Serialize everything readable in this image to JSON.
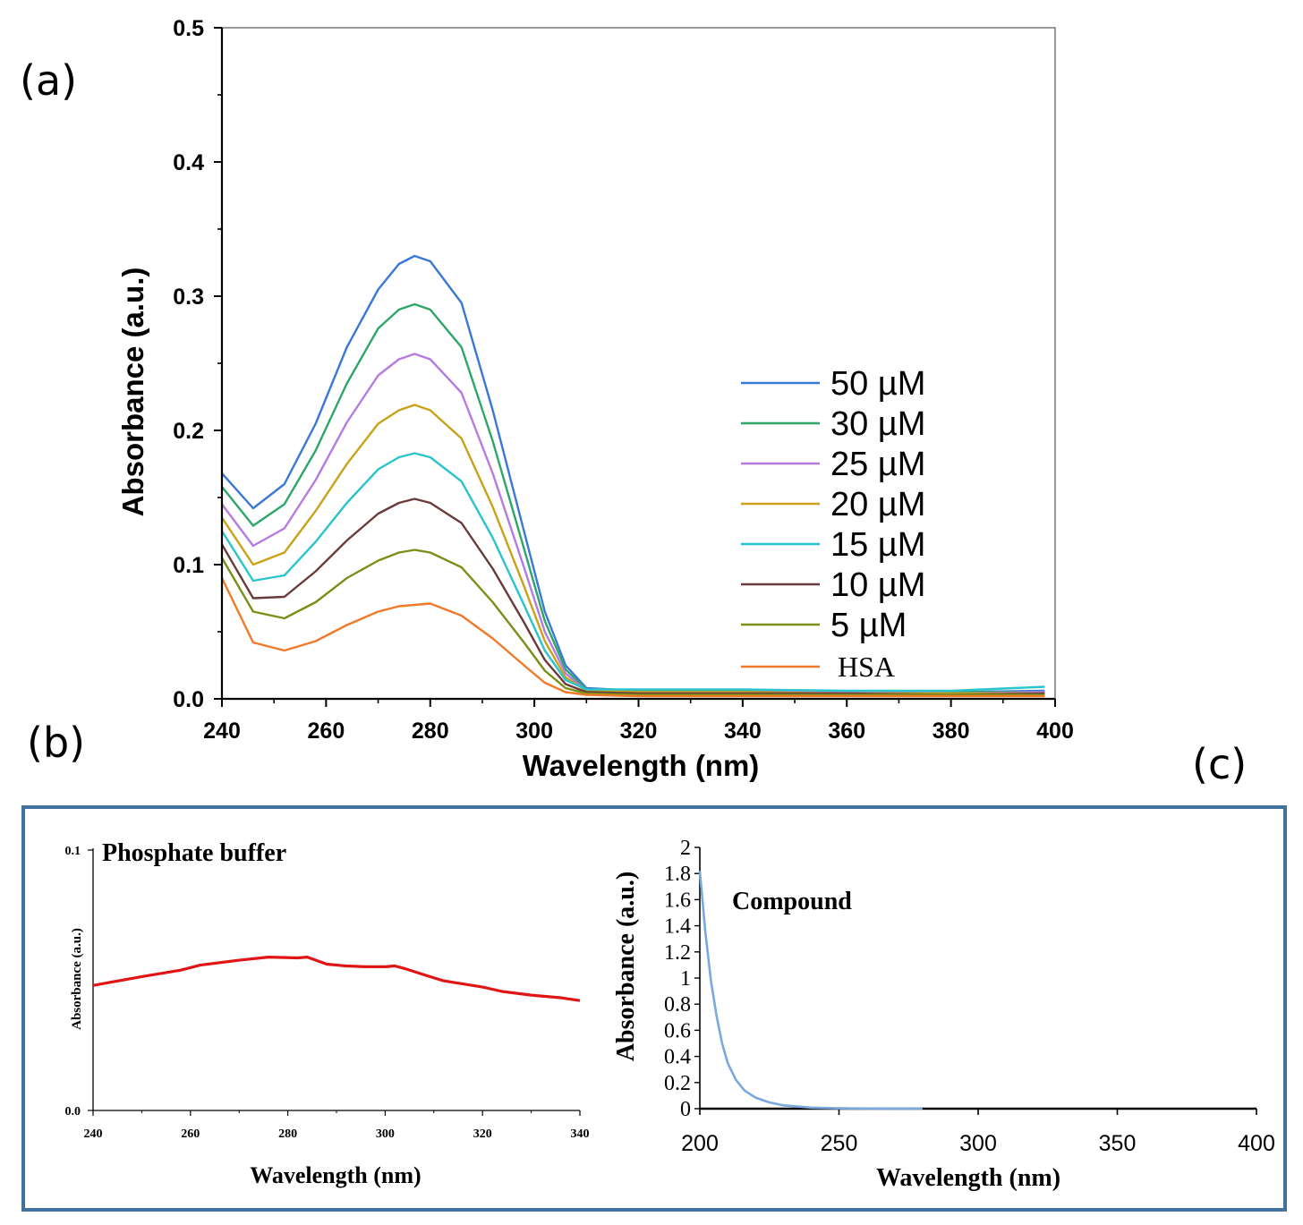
{
  "panels": {
    "a": "(a)",
    "b": "(b)",
    "c": "(c)"
  },
  "chart_data": [
    {
      "id": "a",
      "type": "line",
      "title": "",
      "xlabel": "Wavelength (nm)",
      "ylabel": "Absorbance (a.u.)",
      "xlim": [
        240,
        400
      ],
      "ylim": [
        0,
        0.5
      ],
      "xticks": [
        240,
        260,
        280,
        300,
        320,
        340,
        360,
        380,
        400
      ],
      "yticks": [
        0.0,
        0.1,
        0.2,
        0.3,
        0.4,
        0.5
      ],
      "ytick_labels": [
        "0.0",
        "0.1",
        "0.2",
        "0.3",
        "0.4",
        "0.5"
      ],
      "legend_position": "right",
      "x": [
        240,
        246,
        252,
        258,
        264,
        270,
        274,
        277,
        280,
        286,
        292,
        298,
        302,
        306,
        310,
        320,
        340,
        360,
        380,
        398
      ],
      "series": [
        {
          "name": "50 µM",
          "color": "#3a78d6",
          "values": [
            0.168,
            0.142,
            0.16,
            0.205,
            0.262,
            0.305,
            0.324,
            0.33,
            0.326,
            0.295,
            0.215,
            0.125,
            0.065,
            0.025,
            0.008,
            0.006,
            0.006,
            0.005,
            0.005,
            0.006
          ]
        },
        {
          "name": "30 µM",
          "color": "#2ea66a",
          "values": [
            0.158,
            0.129,
            0.145,
            0.185,
            0.235,
            0.276,
            0.29,
            0.294,
            0.29,
            0.262,
            0.192,
            0.112,
            0.058,
            0.022,
            0.007,
            0.006,
            0.006,
            0.005,
            0.005,
            0.005
          ]
        },
        {
          "name": "25 µM",
          "color": "#b57be0",
          "values": [
            0.145,
            0.114,
            0.127,
            0.163,
            0.206,
            0.241,
            0.253,
            0.257,
            0.253,
            0.228,
            0.168,
            0.098,
            0.05,
            0.019,
            0.006,
            0.005,
            0.005,
            0.005,
            0.004,
            0.005
          ]
        },
        {
          "name": "20 µM",
          "color": "#c9a21a",
          "values": [
            0.135,
            0.1,
            0.109,
            0.14,
            0.175,
            0.205,
            0.215,
            0.219,
            0.215,
            0.194,
            0.143,
            0.084,
            0.043,
            0.016,
            0.006,
            0.005,
            0.005,
            0.004,
            0.004,
            0.004
          ]
        },
        {
          "name": "15 µM",
          "color": "#2bc4cc",
          "values": [
            0.125,
            0.088,
            0.092,
            0.117,
            0.146,
            0.171,
            0.18,
            0.183,
            0.18,
            0.162,
            0.12,
            0.07,
            0.036,
            0.014,
            0.007,
            0.007,
            0.007,
            0.006,
            0.006,
            0.009
          ]
        },
        {
          "name": "10 µM",
          "color": "#6b3a3a",
          "values": [
            0.115,
            0.075,
            0.076,
            0.095,
            0.118,
            0.138,
            0.146,
            0.149,
            0.146,
            0.131,
            0.097,
            0.057,
            0.029,
            0.011,
            0.005,
            0.004,
            0.004,
            0.004,
            0.003,
            0.004
          ]
        },
        {
          "name": "5 µM",
          "color": "#7a8f16",
          "values": [
            0.105,
            0.065,
            0.06,
            0.072,
            0.09,
            0.103,
            0.109,
            0.111,
            0.109,
            0.098,
            0.072,
            0.042,
            0.021,
            0.008,
            0.004,
            0.003,
            0.003,
            0.003,
            0.003,
            0.003
          ]
        },
        {
          "name": "HSA",
          "color": "#f07a2a",
          "values": [
            0.09,
            0.042,
            0.036,
            0.043,
            0.055,
            0.065,
            0.069,
            0.07,
            0.071,
            0.062,
            0.045,
            0.025,
            0.012,
            0.005,
            0.003,
            0.002,
            0.002,
            0.002,
            0.002,
            0.002
          ]
        }
      ]
    },
    {
      "id": "b",
      "type": "line",
      "title": "Phosphate buffer",
      "xlabel": "Wavelength (nm)",
      "ylabel": "Absorbance (a.u.)",
      "xlim": [
        240,
        340
      ],
      "ylim": [
        0,
        0.1
      ],
      "xticks": [
        240,
        260,
        280,
        300,
        320,
        340
      ],
      "yticks": [
        0.0,
        0.1
      ],
      "ytick_labels": [
        "0.0",
        "0.1"
      ],
      "x": [
        240,
        250,
        258,
        262,
        270,
        276,
        282,
        284,
        288,
        292,
        296,
        300,
        302,
        304,
        308,
        312,
        316,
        320,
        324,
        330,
        336,
        340
      ],
      "series": [
        {
          "name": "Phosphate buffer",
          "color": "#e01515",
          "values": [
            0.048,
            0.0514,
            0.0539,
            0.0558,
            0.0577,
            0.0589,
            0.0586,
            0.0589,
            0.0562,
            0.0555,
            0.0552,
            0.0552,
            0.0555,
            0.0545,
            0.0521,
            0.0498,
            0.0486,
            0.0474,
            0.0457,
            0.0443,
            0.0433,
            0.0422
          ]
        }
      ]
    },
    {
      "id": "c",
      "type": "line",
      "title": "Compound",
      "xlabel": "Wavelength (nm)",
      "ylabel": "Absorbance (a.u.)",
      "xlim": [
        200,
        400
      ],
      "ylim": [
        0,
        2
      ],
      "xticks": [
        200,
        250,
        300,
        350,
        400
      ],
      "yticks": [
        0,
        0.2,
        0.4,
        0.6,
        0.8,
        1,
        1.2,
        1.4,
        1.6,
        1.8,
        2
      ],
      "ytick_labels": [
        "0",
        "0.2",
        "0.4",
        "0.6",
        "0.8",
        "1",
        "1.2",
        "1.4",
        "1.6",
        "1.8",
        "2"
      ],
      "x": [
        200,
        202,
        204,
        206,
        208,
        210,
        213,
        216,
        220,
        225,
        230,
        240,
        250,
        265,
        280
      ],
      "series": [
        {
          "name": "Compound",
          "color": "#7aa9dd",
          "values": [
            1.82,
            1.35,
            0.98,
            0.71,
            0.5,
            0.35,
            0.22,
            0.14,
            0.085,
            0.048,
            0.025,
            0.008,
            0.003,
            0.001,
            0.0
          ]
        }
      ]
    }
  ]
}
